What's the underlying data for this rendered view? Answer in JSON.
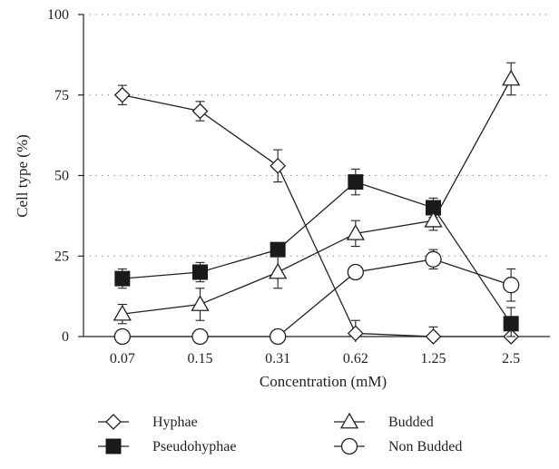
{
  "chart_data": {
    "type": "line",
    "xlabel": "Concentration (mM)",
    "ylabel": "Cell type (%)",
    "ylim": [
      0,
      100
    ],
    "yticks": [
      "0",
      "25",
      "50",
      "75",
      "100"
    ],
    "categories": [
      "0.07",
      "0.15",
      "0.31",
      "0.62",
      "1.25",
      "2.5"
    ],
    "grid": "horizontal dotted",
    "legend_position": "bottom",
    "series": [
      {
        "name": "Hyphae",
        "marker": "diamond-open",
        "values": [
          75,
          70,
          53,
          1,
          0,
          0
        ],
        "errors": [
          3,
          3,
          5,
          4,
          3,
          2
        ]
      },
      {
        "name": "Pseudohyphae",
        "marker": "square-filled",
        "values": [
          18,
          20,
          27,
          48,
          40,
          4
        ],
        "errors": [
          3,
          3,
          2,
          4,
          3,
          5
        ]
      },
      {
        "name": "Budded",
        "marker": "triangle-open",
        "values": [
          7,
          10,
          20,
          32,
          36,
          80
        ],
        "errors": [
          3,
          5,
          5,
          4,
          3,
          5
        ]
      },
      {
        "name": "Non Budded",
        "marker": "circle-open",
        "values": [
          0,
          0,
          0,
          20,
          24,
          16
        ],
        "errors": [
          0,
          0,
          0,
          0,
          3,
          5
        ]
      }
    ]
  }
}
